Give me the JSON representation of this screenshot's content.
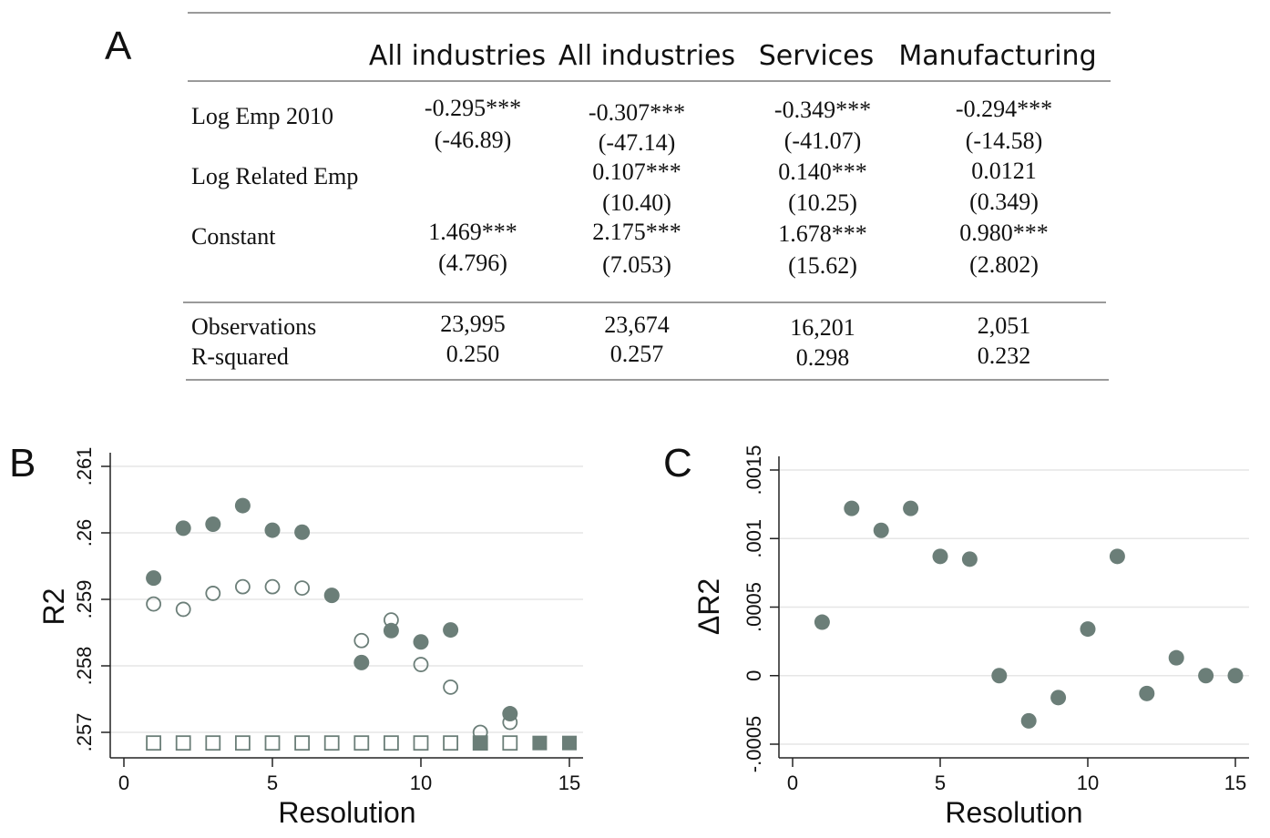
{
  "panel_labels": {
    "a": "A",
    "b": "B",
    "c": "C"
  },
  "table": {
    "columns": [
      "All industries",
      "All industries",
      "Services",
      "Manufacturing"
    ],
    "rows": [
      {
        "label": "Log Emp 2010",
        "coef": [
          "-0.295***",
          "-0.307***",
          "-0.349***",
          "-0.294***"
        ],
        "t": [
          "(-46.89)",
          "(-47.14)",
          "(-41.07)",
          "(-14.58)"
        ]
      },
      {
        "label": "Log Related Emp",
        "coef": [
          "",
          "0.107***",
          "0.140***",
          "0.0121"
        ],
        "t": [
          "",
          "(10.40)",
          "(10.25)",
          "(0.349)"
        ]
      },
      {
        "label": "Constant",
        "coef": [
          "1.469***",
          "2.175***",
          "1.678***",
          "0.980***"
        ],
        "t": [
          "(4.796)",
          "(7.053)",
          "(15.62)",
          "(2.802)"
        ]
      }
    ],
    "stats": [
      {
        "label": "Observations",
        "values": [
          "23,995",
          "23,674",
          "16,201",
          "2,051"
        ]
      },
      {
        "label": "R-squared",
        "values": [
          "0.250",
          "0.257",
          "0.298",
          "0.232"
        ]
      }
    ]
  },
  "chart_data": [
    {
      "type": "scatter",
      "panel": "B",
      "title": "",
      "xlabel": "Resolution",
      "ylabel": "R2",
      "xlim": [
        0,
        15
      ],
      "ylim": [
        0.25683,
        0.2612
      ],
      "xticks": [
        0,
        5,
        10,
        15
      ],
      "yticks": [
        0.257,
        0.258,
        0.259,
        0.26,
        0.261
      ],
      "ytick_labels": [
        ".257",
        ".258",
        ".259",
        ".26",
        ".261"
      ],
      "grid": true,
      "series": [
        {
          "name": "filled-circle",
          "marker": "filled-circle",
          "color": "#6b7e78",
          "x": [
            1,
            2,
            3,
            4,
            5,
            6,
            7,
            8,
            9,
            10,
            11,
            13
          ],
          "y": [
            0.25932,
            0.26007,
            0.26013,
            0.26041,
            0.26004,
            0.26001,
            0.25906,
            0.25805,
            0.25853,
            0.25836,
            0.25854,
            0.25728
          ]
        },
        {
          "name": "hollow-circle",
          "marker": "hollow-circle",
          "color": "#6b7e78",
          "x": [
            1,
            2,
            3,
            4,
            5,
            6,
            8,
            9,
            10,
            11,
            12,
            13
          ],
          "y": [
            0.25893,
            0.25885,
            0.25909,
            0.25919,
            0.25919,
            0.25917,
            0.25838,
            0.25869,
            0.25802,
            0.25768,
            0.257,
            0.25715
          ]
        },
        {
          "name": "hollow-square",
          "marker": "hollow-square",
          "color": "#6b7e78",
          "x": [
            1,
            2,
            3,
            4,
            5,
            6,
            7,
            8,
            9,
            10,
            11,
            12,
            13
          ],
          "y": [
            0.25684,
            0.25684,
            0.25684,
            0.25684,
            0.25684,
            0.25684,
            0.25684,
            0.25684,
            0.25684,
            0.25684,
            0.25684,
            0.25684,
            0.25684
          ]
        },
        {
          "name": "filled-square",
          "marker": "filled-square",
          "color": "#6b7e78",
          "x": [
            12,
            14,
            15
          ],
          "y": [
            0.25684,
            0.25684,
            0.25684
          ]
        }
      ]
    },
    {
      "type": "scatter",
      "panel": "C",
      "title": "",
      "xlabel": "Resolution",
      "ylabel": "ΔR2",
      "xlim": [
        0,
        15
      ],
      "ylim": [
        -0.0005,
        0.0015
      ],
      "xticks": [
        0,
        5,
        10,
        15
      ],
      "yticks": [
        -0.0005,
        0,
        0.0005,
        0.001,
        0.0015
      ],
      "ytick_labels": [
        "-.0005",
        "0",
        ".0005",
        ".001",
        ".0015"
      ],
      "grid": true,
      "series": [
        {
          "name": "delta-r2",
          "marker": "filled-circle",
          "color": "#6b7e78",
          "x": [
            1,
            2,
            3,
            4,
            5,
            6,
            7,
            8,
            9,
            10,
            11,
            12,
            13,
            14,
            15
          ],
          "y": [
            0.00039,
            0.00122,
            0.00106,
            0.00122,
            0.00087,
            0.00085,
            0.0,
            -0.00033,
            -0.00016,
            0.00034,
            0.00087,
            -0.00013,
            0.00013,
            0.0,
            0.0
          ]
        }
      ]
    }
  ]
}
